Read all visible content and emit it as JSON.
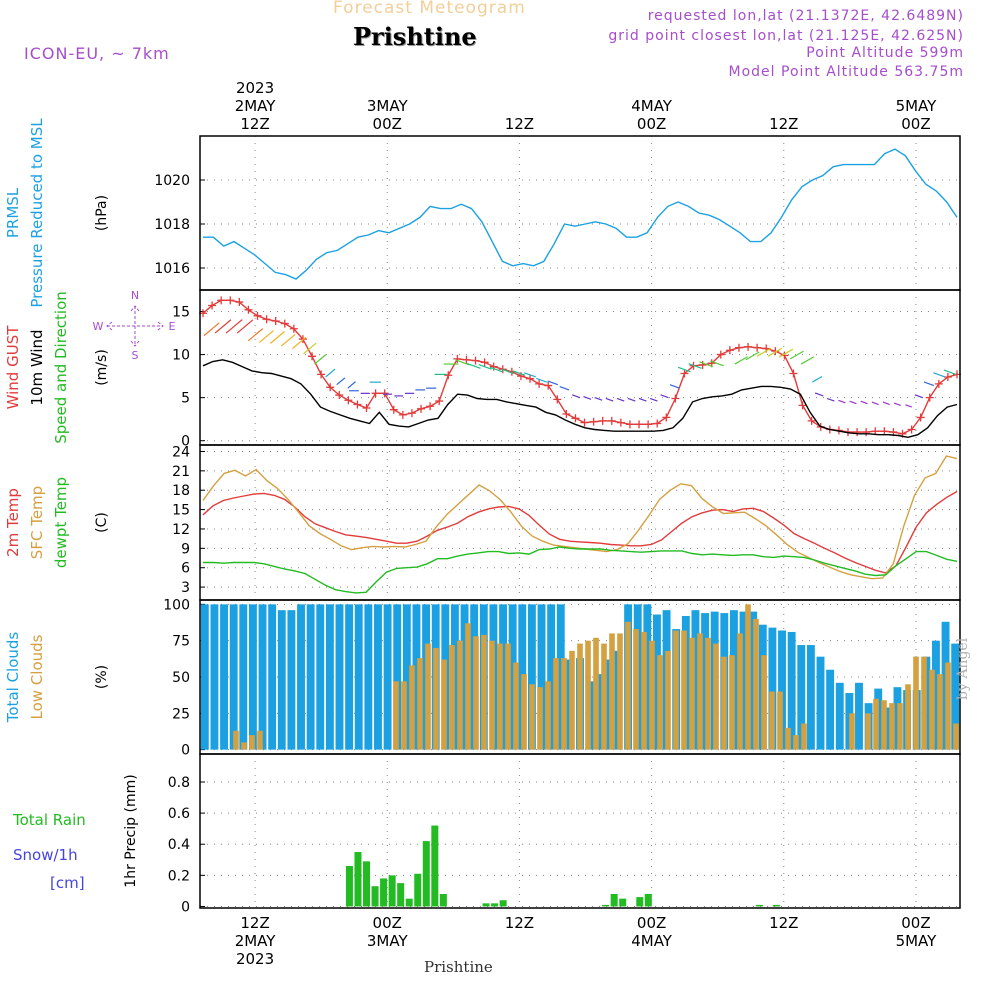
{
  "header": {
    "subtitle": "Forecast Meteogram",
    "location": "Prishtine",
    "model": "ICON-EU, ~ 7km",
    "info_lines": [
      "requested lon,lat (21.1372E, 42.6489N)",
      "grid point closest lon,lat (21.125E, 42.625N)",
      "Point Altitude 599m",
      "Model Point Altitude 563.75m"
    ]
  },
  "footer": {
    "location": "Prishtine",
    "credit": "by Angel"
  },
  "time_axis": {
    "x_min": 0,
    "x_max": 69,
    "hour_ticks": [
      5,
      17,
      29,
      41,
      53,
      65
    ],
    "top_labels": [
      {
        "x": 5,
        "lines": [
          "2023",
          "2MAY",
          "12Z"
        ]
      },
      {
        "x": 17,
        "lines": [
          "3MAY",
          "00Z"
        ]
      },
      {
        "x": 29,
        "lines": [
          "12Z"
        ]
      },
      {
        "x": 41,
        "lines": [
          "4MAY",
          "00Z"
        ]
      },
      {
        "x": 53,
        "lines": [
          "12Z"
        ]
      },
      {
        "x": 65,
        "lines": [
          "5MAY",
          "00Z"
        ]
      }
    ],
    "bottom_labels": [
      {
        "x": 5,
        "lines": [
          "12Z",
          "2MAY",
          "2023"
        ]
      },
      {
        "x": 17,
        "lines": [
          "00Z",
          "3MAY"
        ]
      },
      {
        "x": 29,
        "lines": [
          "12Z"
        ]
      },
      {
        "x": 41,
        "lines": [
          "00Z",
          "4MAY"
        ]
      },
      {
        "x": 53,
        "lines": [
          "12Z"
        ]
      },
      {
        "x": 65,
        "lines": [
          "00Z",
          "5MAY"
        ]
      }
    ]
  },
  "chart_data": [
    {
      "type": "line",
      "title": "PRMSL Pressure Reduced to MSL",
      "side_labels": [
        {
          "text": "PRMSL",
          "color": "#1ba1e2"
        },
        {
          "text": "Pressure Reduced to MSL",
          "color": "#1ba1e2"
        }
      ],
      "ylabel": "(hPa)",
      "ylim": [
        1015.0,
        1022.0
      ],
      "yticks": [
        1016,
        1018,
        1020
      ],
      "series": [
        {
          "name": "PRMSL",
          "color": "#1ba1e2",
          "values": [
            1017.4,
            1017.4,
            1017.0,
            1017.2,
            1016.9,
            1016.6,
            1016.2,
            1015.8,
            1015.7,
            1015.5,
            1015.9,
            1016.4,
            1016.7,
            1016.8,
            1017.1,
            1017.4,
            1017.5,
            1017.7,
            1017.6,
            1017.8,
            1018.0,
            1018.3,
            1018.8,
            1018.7,
            1018.7,
            1018.9,
            1018.7,
            1018.1,
            1017.2,
            1016.3,
            1016.1,
            1016.2,
            1016.1,
            1016.3,
            1017.1,
            1018.0,
            1017.9,
            1018.0,
            1018.1,
            1018.0,
            1017.8,
            1017.4,
            1017.4,
            1017.6,
            1018.3,
            1018.8,
            1019.0,
            1018.8,
            1018.5,
            1018.4,
            1018.2,
            1017.9,
            1017.6,
            1017.2,
            1017.2,
            1017.6,
            1018.3,
            1019.1,
            1019.7,
            1020.0,
            1020.2,
            1020.6,
            1020.7,
            1020.7,
            1020.7,
            1020.7,
            1021.2,
            1021.4,
            1021.1,
            1020.4,
            1019.8,
            1019.5,
            1019.0,
            1018.3
          ]
        }
      ]
    },
    {
      "type": "line",
      "title": "Wind GUST / 10m Wind Speed and Direction",
      "side_labels": [
        {
          "text": "Wind GUST",
          "color": "#e23b3b"
        },
        {
          "text": "10m Wind",
          "color": "#000000"
        },
        {
          "text": "Speed and Direction",
          "color": "#22bb22"
        }
      ],
      "ylabel": "(m/s)",
      "compass": {
        "n": "N",
        "s": "S",
        "e": "E",
        "w": "W"
      },
      "ylim": [
        -0.5,
        17.5
      ],
      "yticks": [
        0,
        5,
        10,
        15
      ],
      "series": [
        {
          "name": "Wind GUST",
          "color": "#e23b3b",
          "marker": "+",
          "values": [
            14.8,
            15.7,
            16.3,
            16.3,
            16.1,
            15.2,
            14.5,
            14.1,
            13.9,
            13.6,
            13.0,
            11.8,
            9.8,
            7.7,
            6.2,
            5.3,
            4.7,
            4.2,
            3.8,
            5.5,
            5.5,
            3.6,
            3.0,
            3.2,
            3.7,
            4.0,
            4.6,
            7.6,
            9.5,
            9.4,
            9.3,
            9.1,
            8.6,
            8.3,
            8.0,
            7.5,
            7.2,
            6.6,
            6.4,
            4.8,
            3.1,
            2.6,
            2.1,
            2.2,
            2.3,
            2.3,
            2.1,
            1.9,
            1.9,
            1.9,
            2.0,
            2.7,
            4.9,
            7.8,
            8.7,
            8.8,
            9.0,
            10.0,
            10.5,
            10.8,
            10.9,
            10.8,
            10.7,
            10.4,
            9.9,
            7.8,
            4.1,
            2.3,
            1.6,
            1.3,
            1.2,
            1.0,
            1.0,
            1.0,
            1.1,
            1.1,
            1.0,
            0.8,
            1.3,
            2.7,
            5.0,
            6.6,
            7.4,
            7.7
          ]
        },
        {
          "name": "10m Wind",
          "color": "#000000",
          "values": [
            8.7,
            9.2,
            9.4,
            9.1,
            8.6,
            8.1,
            7.9,
            7.8,
            7.5,
            7.2,
            6.6,
            5.4,
            3.9,
            3.4,
            3.0,
            2.6,
            2.3,
            2.0,
            3.3,
            1.9,
            1.7,
            1.6,
            2.0,
            2.4,
            2.6,
            4.2,
            5.4,
            5.3,
            4.9,
            4.8,
            4.8,
            4.5,
            4.3,
            4.1,
            3.9,
            3.3,
            3.0,
            2.4,
            1.9,
            1.5,
            1.3,
            1.2,
            1.1,
            1.1,
            1.1,
            1.1,
            1.1,
            1.2,
            1.5,
            2.6,
            4.5,
            4.9,
            5.1,
            5.2,
            5.4,
            5.9,
            6.1,
            6.3,
            6.3,
            6.2,
            6.0,
            5.4,
            3.3,
            1.7,
            1.3,
            1.1,
            0.9,
            0.8,
            0.8,
            0.7,
            0.7,
            0.6,
            0.4,
            0.7,
            1.5,
            2.9,
            3.9,
            4.2
          ]
        }
      ],
      "wind_barbs": {
        "level": "10m",
        "count": 69
      }
    },
    {
      "type": "line",
      "title": "2m Temp / SFC Temp / dewpt Temp",
      "side_labels": [
        {
          "text": "2m Temp",
          "color": "#e23b3b"
        },
        {
          "text": "SFC Temp",
          "color": "#d4a040"
        },
        {
          "text": "dewpt Temp",
          "color": "#22bb22"
        }
      ],
      "ylabel": "(C)",
      "ylim": [
        1.0,
        25.0
      ],
      "yticks": [
        3,
        6,
        9,
        12,
        15,
        18,
        21,
        24
      ],
      "series": [
        {
          "name": "2m Temp",
          "color": "#e23b3b",
          "values": [
            14.2,
            15.6,
            16.4,
            16.8,
            17.1,
            17.4,
            17.5,
            17.2,
            16.6,
            15.4,
            13.9,
            12.8,
            12.2,
            11.6,
            11.1,
            10.9,
            10.7,
            10.4,
            10.1,
            9.8,
            9.8,
            10.1,
            10.9,
            11.8,
            12.3,
            12.9,
            13.9,
            14.6,
            15.1,
            15.4,
            15.5,
            15.1,
            14.1,
            12.6,
            11.2,
            10.4,
            10.1,
            10.0,
            9.9,
            9.8,
            9.6,
            9.5,
            9.4,
            9.4,
            9.6,
            10.3,
            11.6,
            12.9,
            13.9,
            14.5,
            14.9,
            15.0,
            14.7,
            15.1,
            15.2,
            14.7,
            13.7,
            12.6,
            11.3,
            10.5,
            9.8,
            9.0,
            8.3,
            7.5,
            6.8,
            6.2,
            5.6,
            5.2,
            6.3,
            9.2,
            12.3,
            14.5,
            15.8,
            16.9,
            17.8
          ]
        },
        {
          "name": "SFC Temp",
          "color": "#d4a040",
          "values": [
            16.4,
            18.7,
            20.6,
            21.1,
            20.2,
            21.2,
            19.5,
            18.3,
            16.6,
            14.6,
            12.5,
            11.3,
            10.4,
            9.4,
            8.8,
            9.1,
            9.3,
            9.2,
            9.3,
            9.2,
            9.6,
            10.1,
            12.4,
            14.3,
            15.8,
            17.3,
            18.8,
            17.9,
            16.5,
            14.6,
            12.4,
            10.9,
            10.1,
            9.5,
            9.3,
            9.1,
            8.9,
            8.7,
            8.5,
            8.8,
            9.7,
            11.8,
            14.1,
            16.6,
            18.0,
            19.0,
            18.7,
            16.7,
            15.4,
            14.4,
            14.5,
            14.6,
            13.6,
            12.5,
            11.1,
            9.6,
            8.4,
            7.6,
            6.8,
            6.1,
            5.4,
            4.9,
            4.6,
            4.3,
            4.4,
            6.6,
            12.5,
            17.2,
            19.9,
            20.6,
            23.3,
            22.9
          ]
        },
        {
          "name": "dewpt Temp",
          "color": "#22bb22",
          "values": [
            6.8,
            6.8,
            6.7,
            6.8,
            6.8,
            6.8,
            6.6,
            6.2,
            5.8,
            5.5,
            5.1,
            4.2,
            3.3,
            2.6,
            2.3,
            2.1,
            2.2,
            3.8,
            5.3,
            5.9,
            6.0,
            6.1,
            6.6,
            7.4,
            7.4,
            7.8,
            8.1,
            8.3,
            8.5,
            8.5,
            8.2,
            8.3,
            8.1,
            8.8,
            8.9,
            9.2,
            9.0,
            8.9,
            8.9,
            8.9,
            8.7,
            8.6,
            8.5,
            8.4,
            8.5,
            8.6,
            8.6,
            8.6,
            8.2,
            8.0,
            8.1,
            8.0,
            7.9,
            8.0,
            8.0,
            7.7,
            7.6,
            7.8,
            7.7,
            7.6,
            7.2,
            6.7,
            6.3,
            5.9,
            5.5,
            5.0,
            4.8,
            4.9,
            6.3,
            7.4,
            8.5,
            8.5,
            7.9,
            7.3,
            7.0
          ]
        }
      ]
    },
    {
      "type": "bar",
      "title": "Total Clouds / Low Clouds",
      "side_labels": [
        {
          "text": "Total Clouds",
          "color": "#1ba1e2"
        },
        {
          "text": "Low Clouds",
          "color": "#d4a040"
        }
      ],
      "ylabel": "(%)",
      "ylim": [
        -3,
        103
      ],
      "yticks": [
        0,
        25,
        50,
        75,
        100
      ],
      "series": [
        {
          "name": "Total Clouds",
          "color": "#1ba1e2",
          "values": [
            100,
            100,
            100,
            100,
            100,
            100,
            100,
            100,
            96,
            96,
            100,
            100,
            100,
            100,
            100,
            100,
            100,
            100,
            100,
            100,
            100,
            100,
            100,
            100,
            100,
            100,
            100,
            100,
            100,
            100,
            100,
            100,
            100,
            100,
            100,
            100,
            100,
            100,
            62,
            63,
            47,
            52,
            62,
            68,
            100,
            100,
            100,
            93,
            96,
            83,
            92,
            96,
            94,
            95,
            94,
            96,
            95,
            95,
            86,
            84,
            82,
            81,
            72,
            72,
            64,
            55,
            46,
            39,
            46,
            32,
            42,
            29,
            43,
            41,
            41,
            64,
            75,
            88,
            73
          ]
        },
        {
          "name": "Low Clouds",
          "color": "#d4a040",
          "values": [
            0,
            0,
            0,
            0,
            13,
            5,
            10,
            13,
            0,
            0,
            0,
            0,
            0,
            0,
            0,
            0,
            0,
            0,
            0,
            0,
            0,
            0,
            0,
            0,
            47,
            47,
            58,
            63,
            73,
            70,
            62,
            72,
            75,
            87,
            78,
            79,
            75,
            73,
            73,
            60,
            52,
            45,
            43,
            47,
            63,
            63,
            68,
            73,
            75,
            77,
            73,
            80,
            80,
            88,
            83,
            81,
            75,
            65,
            68,
            82,
            82,
            77,
            80,
            77,
            73,
            64,
            65,
            80,
            100,
            90,
            65,
            40,
            40,
            15,
            10,
            18,
            0,
            0,
            0,
            0,
            0,
            25,
            0,
            25,
            35,
            34,
            32,
            32,
            45,
            64,
            64,
            55,
            52,
            60,
            18
          ]
        }
      ]
    },
    {
      "type": "bar",
      "title": "1hr Precip (mm)",
      "side_labels": [
        {
          "text": "Total   Rain",
          "color": "#22bb22"
        },
        {
          "text": "Snow/1h",
          "color": "#4444dd"
        },
        {
          "text": "[cm]",
          "color": "#4444dd"
        }
      ],
      "ylabel": "1hr Precip (mm)",
      "ylim": [
        -0.01,
        0.98
      ],
      "yticks": [
        0,
        0.2,
        0.4,
        0.6,
        0.8
      ],
      "series": [
        {
          "name": "Total Rain",
          "color": "#22bb22",
          "values": [
            0,
            0,
            0,
            0,
            0,
            0,
            0,
            0,
            0,
            0,
            0,
            0,
            0,
            0,
            0,
            0,
            0,
            0.26,
            0.35,
            0.29,
            0.13,
            0.18,
            0.2,
            0.15,
            0.05,
            0.21,
            0.42,
            0.52,
            0.08,
            0,
            0,
            0,
            0,
            0.02,
            0.02,
            0.04,
            0,
            0,
            0,
            0,
            0,
            0,
            0,
            0,
            0,
            0,
            0,
            0.01,
            0.08,
            0.05,
            0,
            0.06,
            0.08,
            0,
            0,
            0,
            0,
            0,
            0,
            0,
            0,
            0,
            0,
            0,
            0,
            0.01,
            0,
            0.01,
            0,
            0,
            0,
            0,
            0,
            0,
            0,
            0,
            0,
            0,
            0,
            0,
            0,
            0,
            0,
            0,
            0,
            0,
            0,
            0,
            0
          ]
        }
      ]
    }
  ]
}
